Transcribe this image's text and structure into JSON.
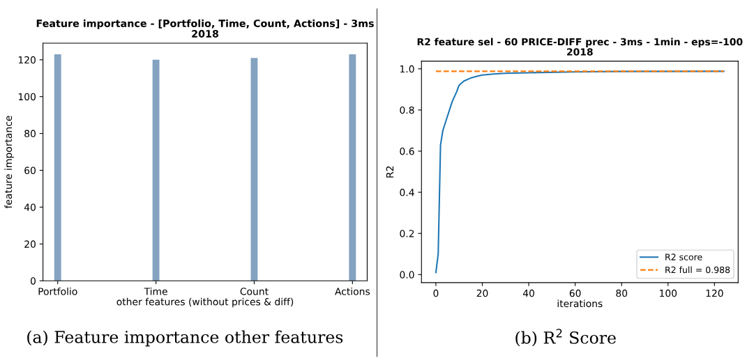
{
  "chart_data": [
    {
      "type": "bar",
      "title": "Feature importance - [Portfolio, Time, Count, Actions] - 3ms\n2018",
      "xlabel": "other features (without prices & diff)",
      "ylabel": "feature importance",
      "categories": [
        "Portfolio",
        "Time",
        "Count",
        "Actions"
      ],
      "values": [
        123,
        120,
        121,
        123
      ],
      "color": "#84a3c1",
      "ylim": [
        0,
        129
      ],
      "yticks": [
        0,
        20,
        40,
        60,
        80,
        100,
        120
      ],
      "grid": false,
      "annotations": [
        "(a) Feature importance other features"
      ]
    },
    {
      "type": "line",
      "title": "R2 feature sel - 60 PRICE-DIFF prec - 3ms - 1min - eps=-100\n2018",
      "xlabel": "iterations",
      "ylabel": "R2",
      "series": [
        {
          "name": "R2 score",
          "color": "#1f77b4",
          "line_style": "solid",
          "x": [
            0,
            1,
            2,
            3,
            5,
            7,
            9,
            10,
            12,
            15,
            18,
            20,
            25,
            30,
            40,
            60,
            80,
            124
          ],
          "values": [
            0.01,
            0.1,
            0.63,
            0.7,
            0.77,
            0.84,
            0.89,
            0.92,
            0.94,
            0.955,
            0.965,
            0.97,
            0.975,
            0.978,
            0.981,
            0.985,
            0.987,
            0.988
          ]
        },
        {
          "name": "R2 full = 0.988",
          "color": "#ff7f0e",
          "line_style": "dashed",
          "x": [
            0,
            124
          ],
          "values": [
            0.988,
            0.988
          ]
        }
      ],
      "xlim": [
        -6.2,
        130.2
      ],
      "xticks": [
        0,
        20,
        40,
        60,
        80,
        100,
        120
      ],
      "ylim": [
        -0.039,
        1.037
      ],
      "yticks": [
        {
          "value": 0,
          "label": "0.0"
        },
        {
          "value": 0.2,
          "label": "0.2"
        },
        {
          "value": 0.4,
          "label": "0.4"
        },
        {
          "value": 0.6,
          "label": "0.6"
        },
        {
          "value": 0.8,
          "label": "0.8"
        },
        {
          "value": 1,
          "label": "1.0"
        }
      ],
      "grid": false,
      "legend": "lower right",
      "annotations": [
        "(b) R$^{2}$ Score"
      ]
    }
  ]
}
